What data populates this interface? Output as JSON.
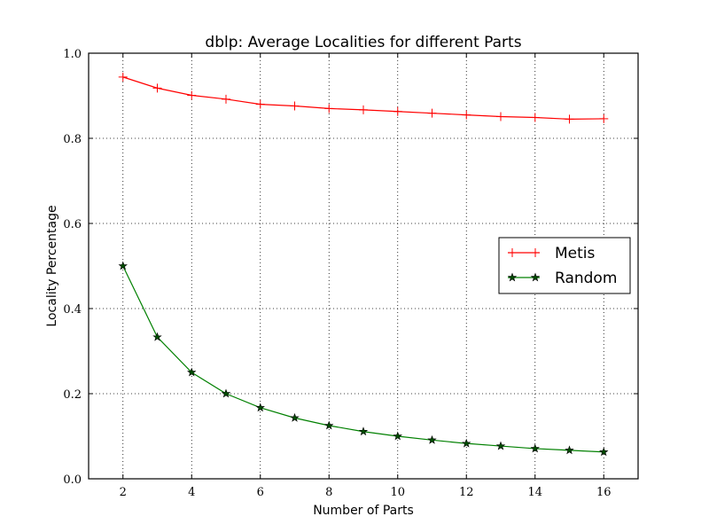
{
  "chart_data": {
    "type": "line",
    "title": "dblp: Average Localities for different Parts",
    "xlabel": "Number of Parts",
    "ylabel": "Locality Percentage",
    "xlim": [
      1,
      17
    ],
    "ylim": [
      0.0,
      1.0
    ],
    "x_ticks": [
      2,
      4,
      6,
      8,
      10,
      12,
      14,
      16
    ],
    "x_tick_labels": [
      "2",
      "4",
      "6",
      "8",
      "10",
      "12",
      "14",
      "16"
    ],
    "y_ticks": [
      0.0,
      0.2,
      0.4,
      0.6,
      0.8,
      1.0
    ],
    "y_tick_labels": [
      "0.0",
      "0.2",
      "0.4",
      "0.6",
      "0.8",
      "1.0"
    ],
    "grid": true,
    "legend_position": "center-right",
    "x": [
      2,
      3,
      4,
      5,
      6,
      7,
      8,
      9,
      10,
      11,
      12,
      13,
      14,
      15,
      16
    ],
    "series": [
      {
        "name": "Metis",
        "color": "#ff0000",
        "marker": "plus",
        "values": [
          0.944,
          0.918,
          0.901,
          0.892,
          0.88,
          0.876,
          0.87,
          0.867,
          0.863,
          0.859,
          0.855,
          0.851,
          0.849,
          0.845,
          0.846
        ]
      },
      {
        "name": "Random",
        "color": "#008000",
        "marker": "star",
        "values": [
          0.5,
          0.333,
          0.25,
          0.2,
          0.167,
          0.143,
          0.125,
          0.111,
          0.1,
          0.091,
          0.083,
          0.077,
          0.071,
          0.067,
          0.063
        ]
      }
    ]
  }
}
